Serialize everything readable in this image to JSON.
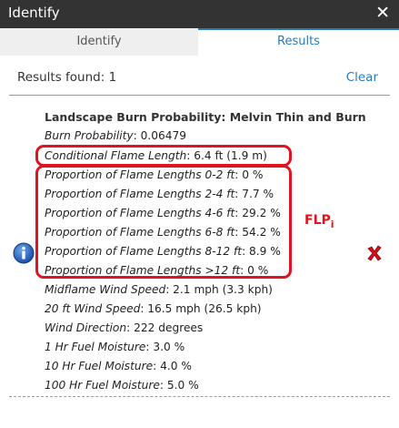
{
  "window": {
    "title": "Identify",
    "close_glyph": "✕"
  },
  "tabs": [
    {
      "label": "Identify",
      "active": false
    },
    {
      "label": "Results",
      "active": true
    }
  ],
  "results": {
    "count_label": "Results found: 1",
    "clear_label": "Clear"
  },
  "feature": {
    "layer_title": "Landscape Burn Probability: Melvin Thin and Burn",
    "attributes": [
      {
        "label": "Burn Probability",
        "value": ": 0.06479"
      },
      {
        "label": "Conditional Flame Length",
        "value": ": 6.4 ft (1.9 m)"
      },
      {
        "label": "Proportion of Flame Lengths 0-2 ft",
        "value": ": 0 %"
      },
      {
        "label": "Proportion of Flame Lengths 2-4 ft",
        "value": ": 7.7 %"
      },
      {
        "label": "Proportion of Flame Lengths 4-6 ft",
        "value": ": 29.2 %"
      },
      {
        "label": "Proportion of Flame Lengths 6-8 ft",
        "value": ": 54.2 %"
      },
      {
        "label": "Proportion of Flame Lengths 8-12 ft",
        "value": ": 8.9 %"
      },
      {
        "label": "Proportion of Flame Lengths >12 ft",
        "value": ": 0 %"
      },
      {
        "label": "Midflame Wind Speed",
        "value": ": 2.1 mph (3.3 kph)"
      },
      {
        "label": "20 ft Wind Speed",
        "value": ": 16.5 mph (26.5 kph)"
      },
      {
        "label": "Wind Direction",
        "value": ": 222 degrees"
      },
      {
        "label": "1 Hr Fuel Moisture",
        "value": ": 3.0 %"
      },
      {
        "label": "10 Hr Fuel Moisture",
        "value": ": 4.0 %"
      },
      {
        "label": "100 Hr Fuel Moisture",
        "value": ": 5.0 %"
      }
    ]
  },
  "annotation": {
    "label": "FLP",
    "subscript": "i",
    "color": "#e0141e"
  },
  "icons": {
    "info": "info-icon",
    "delete": "delete-icon",
    "close": "close-icon"
  },
  "colors": {
    "titlebar": "#333333",
    "accent": "#2a7ab8",
    "highlight": "#e0141e"
  }
}
